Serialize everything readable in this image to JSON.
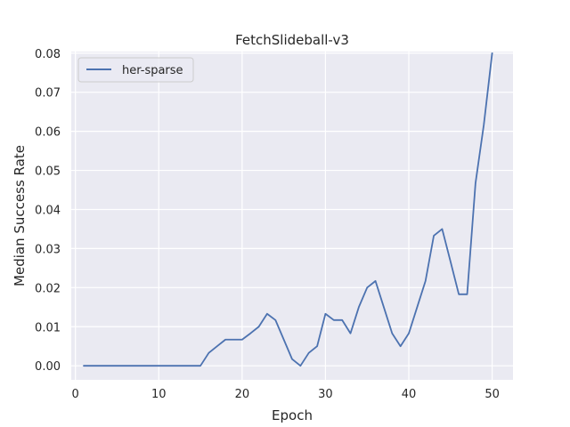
{
  "chart_data": {
    "type": "line",
    "title": "FetchSlideball-v3",
    "xlabel": "Epoch",
    "ylabel": "Median Success Rate",
    "xlim": [
      -0.5,
      52.5
    ],
    "ylim": [
      -0.0036,
      0.0804
    ],
    "xticks": [
      0,
      10,
      20,
      30,
      40,
      50
    ],
    "yticks": [
      0.0,
      0.01,
      0.02,
      0.03,
      0.04,
      0.05,
      0.06,
      0.07,
      0.08
    ],
    "ytick_labels": [
      "0.00",
      "0.01",
      "0.02",
      "0.03",
      "0.04",
      "0.05",
      "0.06",
      "0.07",
      "0.08"
    ],
    "grid": true,
    "legend_position": "top-left",
    "series": [
      {
        "name": "her-sparse",
        "color": "#4c72b0",
        "x": [
          1,
          2,
          3,
          4,
          5,
          6,
          7,
          8,
          9,
          10,
          11,
          12,
          13,
          14,
          15,
          16,
          17,
          18,
          19,
          20,
          21,
          22,
          23,
          24,
          25,
          26,
          27,
          28,
          29,
          30,
          31,
          32,
          33,
          34,
          35,
          36,
          37,
          38,
          39,
          40,
          41,
          42,
          43,
          44,
          45,
          46,
          47,
          48,
          49,
          50
        ],
        "y": [
          0,
          0,
          0,
          0,
          0,
          0,
          0,
          0,
          0,
          0,
          0,
          0,
          0,
          0,
          0,
          0.0033,
          0.005,
          0.0067,
          0.0067,
          0.0067,
          0.0083,
          0.01,
          0.0133,
          0.0117,
          0.0067,
          0.0017,
          0,
          0.0033,
          0.005,
          0.0133,
          0.0117,
          0.0117,
          0.0083,
          0.015,
          0.02,
          0.0217,
          0.015,
          0.0083,
          0.005,
          0.0083,
          0.015,
          0.0217,
          0.0333,
          0.035,
          0.0267,
          0.0183,
          0.0183,
          0.0467,
          0.0617,
          0.08
        ]
      }
    ]
  },
  "colors": {
    "plot_background": "#eaeaf2",
    "grid": "#ffffff",
    "text": "#262626"
  }
}
